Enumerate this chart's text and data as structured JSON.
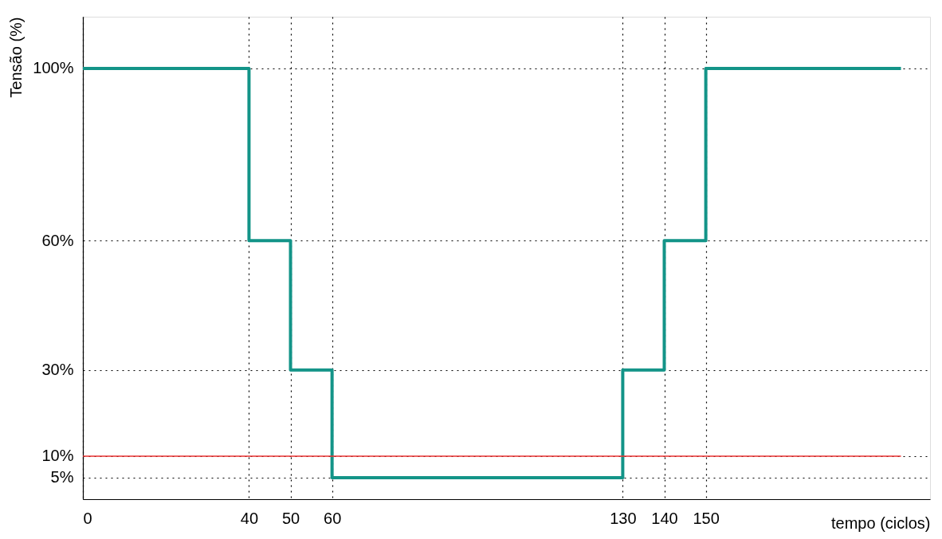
{
  "chart_data": {
    "type": "step",
    "xlabel": "tempo (ciclos)",
    "ylabel": "Tensão (%)",
    "x": [
      0,
      40,
      50,
      60,
      130,
      140,
      150,
      197
    ],
    "series": [
      {
        "color": "#139488",
        "values": [
          100,
          60,
          30,
          5,
          30,
          60,
          100,
          100
        ]
      }
    ],
    "xlim": [
      0,
      204
    ],
    "xticks": [
      0,
      40,
      50,
      60,
      130,
      140,
      150
    ],
    "ylim": [
      0,
      112
    ],
    "yticks": [
      {
        "value": 100,
        "label": "100%"
      },
      {
        "value": 60,
        "label": "60%"
      },
      {
        "value": 30,
        "label": "30%"
      },
      {
        "value": 10,
        "label": "10%"
      },
      {
        "value": 5,
        "label": "5%"
      }
    ],
    "ref_lines": [
      {
        "axis": "y",
        "value": 10,
        "color": "#e8312f"
      }
    ],
    "grid": true,
    "line_style": "solid"
  }
}
